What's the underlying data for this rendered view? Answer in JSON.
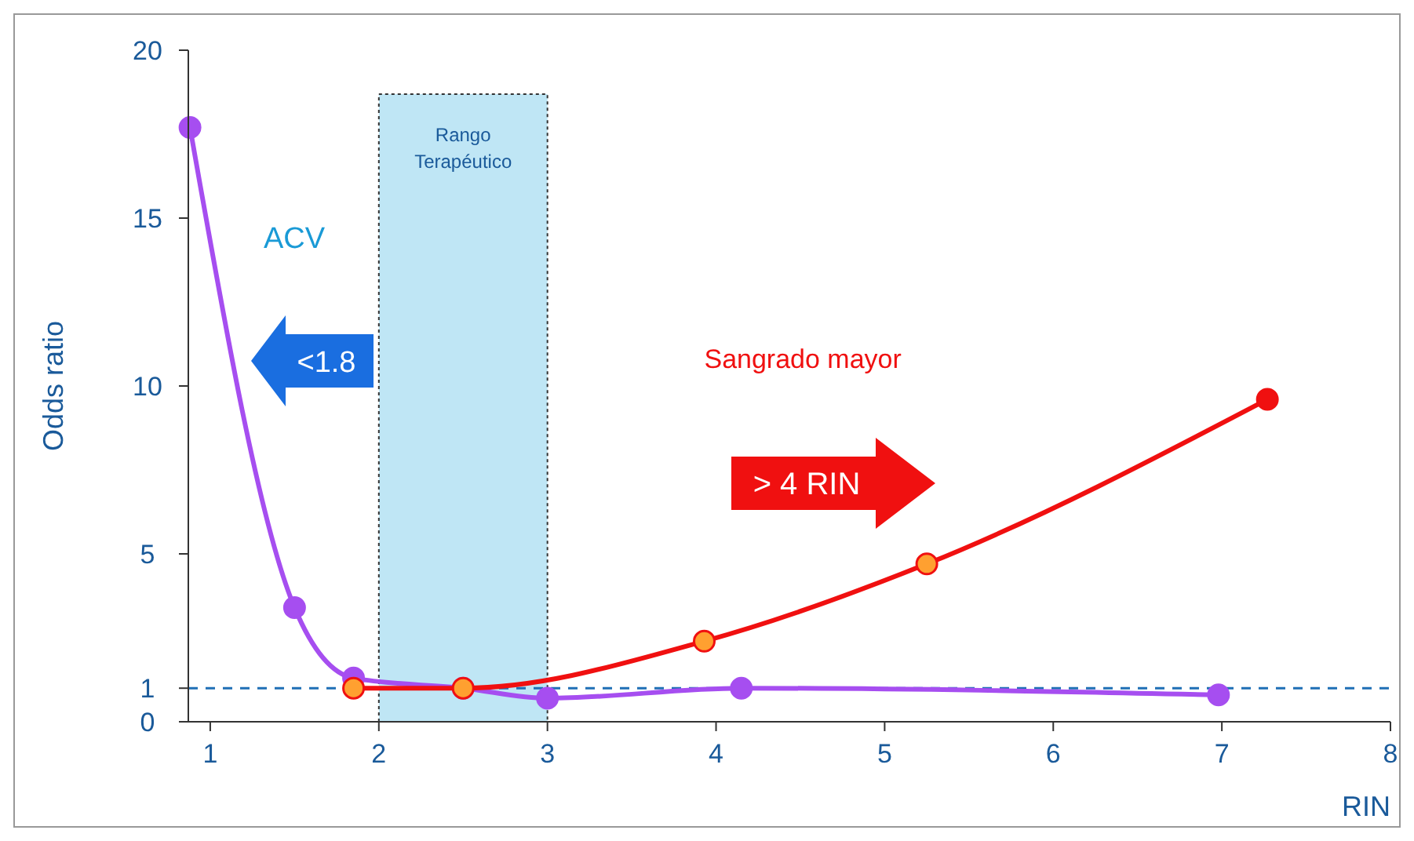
{
  "chart_data": {
    "type": "line",
    "xlabel": "RIN",
    "ylabel": "Odds ratio",
    "x": [
      0.88,
      1.5,
      1.85,
      2.5,
      3.0,
      4.15,
      6.98
    ],
    "xlim": [
      0.87,
      8
    ],
    "xticks": [
      1,
      2,
      3,
      4,
      5,
      6,
      7,
      8
    ],
    "ylim": [
      0,
      20
    ],
    "yticks": [
      0,
      1,
      5,
      10,
      15,
      20
    ],
    "series": [
      {
        "color": "#a64ef0",
        "values": [
          17.7,
          3.4,
          1.3,
          1.0,
          0.7,
          1.0,
          0.8
        ]
      },
      {
        "name": "Sangrado mayor",
        "color": "#f01010",
        "x": [
          1.85,
          2.5,
          3.93,
          5.25,
          7.27
        ],
        "values": [
          1.0,
          1.0,
          2.4,
          4.7,
          9.6
        ]
      }
    ],
    "marker": "circle",
    "grid": false,
    "ref_lines": [
      {
        "axis": "y",
        "value": 1,
        "color": "#1f6fb5",
        "line_style": "dashed"
      }
    ],
    "bands": [
      {
        "axis": "x",
        "from": 2,
        "to": 3,
        "label": "Rango Terapéutico",
        "color": "#bfe6f5"
      }
    ],
    "annotations": [
      "ACV",
      "<1.8",
      "> 4 RIN"
    ]
  }
}
